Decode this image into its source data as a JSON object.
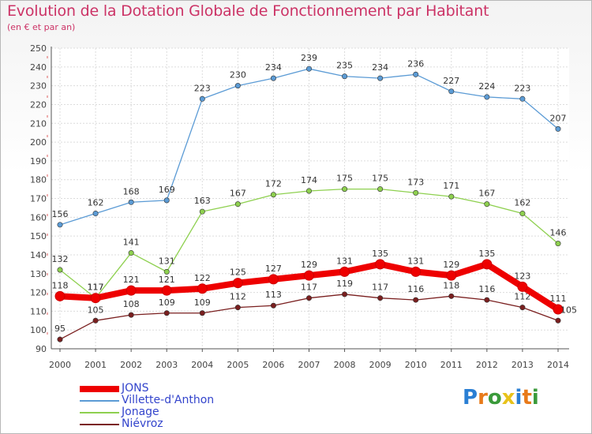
{
  "chart_data": {
    "type": "line",
    "title": "Evolution de la Dotation Globale de Fonctionnement par Habitant",
    "subtitle": "(en € et par an)",
    "xlabel": "",
    "ylabel": "",
    "ylim": [
      90,
      250
    ],
    "yticks": [
      "90",
      "100",
      "110",
      "120",
      "130",
      "140",
      "150",
      "160",
      "170",
      "180",
      "190",
      "200",
      "210",
      "220",
      "230",
      "240",
      "250"
    ],
    "categories": [
      "2000",
      "2001",
      "2002",
      "2003",
      "2004",
      "2005",
      "2006",
      "2007",
      "2008",
      "2009",
      "2010",
      "2011",
      "2012",
      "2013",
      "2014"
    ],
    "series": [
      {
        "name": "Villette-d'Anthon",
        "color": "#5b9bd5",
        "values": [
          156,
          162,
          168,
          169,
          223,
          230,
          234,
          239,
          235,
          234,
          236,
          227,
          224,
          223,
          207
        ],
        "labels": [
          "156",
          "162",
          "168",
          "169",
          "223",
          "230",
          "234",
          "239",
          "235",
          "234",
          "236",
          "227",
          "224",
          "223",
          "207"
        ]
      },
      {
        "name": "Jonage",
        "color": "#8ed04f",
        "values": [
          132,
          117,
          141,
          131,
          163,
          167,
          172,
          174,
          175,
          175,
          173,
          171,
          167,
          162,
          146
        ],
        "labels": [
          "132",
          "117",
          "141",
          "131",
          "163",
          "167",
          "172",
          "174",
          "175",
          "175",
          "173",
          "171",
          "167",
          "162",
          "146"
        ]
      },
      {
        "name": "Niévroz",
        "color": "#7a1f1f",
        "values": [
          95,
          105,
          108,
          109,
          109,
          112,
          113,
          117,
          119,
          117,
          116,
          118,
          116,
          112,
          105
        ],
        "labels": [
          "95",
          "105",
          "108",
          "109",
          "109",
          "112",
          "113",
          "117",
          "119",
          "117",
          "116",
          "118",
          "116",
          "112",
          ""
        ]
      },
      {
        "name": "JONS",
        "color": "#ee0000",
        "values": [
          118,
          117,
          121,
          121,
          122,
          125,
          127,
          129,
          131,
          135,
          131,
          129,
          135,
          123,
          111
        ],
        "labels": [
          "118",
          "117",
          "121",
          "121",
          "122",
          "125",
          "127",
          "129",
          "131",
          "135",
          "131",
          "129",
          "135",
          "123",
          "111"
        ]
      }
    ],
    "overlap_label": {
      "text": "105",
      "series": "Niévroz",
      "index": 14
    },
    "legend_order": [
      "JONS",
      "Villette-d'Anthon",
      "Jonage",
      "Niévroz"
    ],
    "legend_position": "bottom-left",
    "grid": true
  },
  "legend": {
    "items": [
      {
        "label": "JONS",
        "color": "#ee0000"
      },
      {
        "label": "Villette-d'Anthon",
        "color": "#5b9bd5"
      },
      {
        "label": "Jonage",
        "color": "#8ed04f"
      },
      {
        "label": "Niévroz",
        "color": "#7a1f1f"
      }
    ]
  },
  "logo": {
    "letters": [
      "P",
      "r",
      "o",
      "x",
      "i",
      "t",
      "i"
    ],
    "colors": [
      "#2a7fd4",
      "#e87a1a",
      "#3a9a3a",
      "#e8c21a",
      "#2a7fd4",
      "#e87a1a",
      "#3a9a3a"
    ]
  }
}
